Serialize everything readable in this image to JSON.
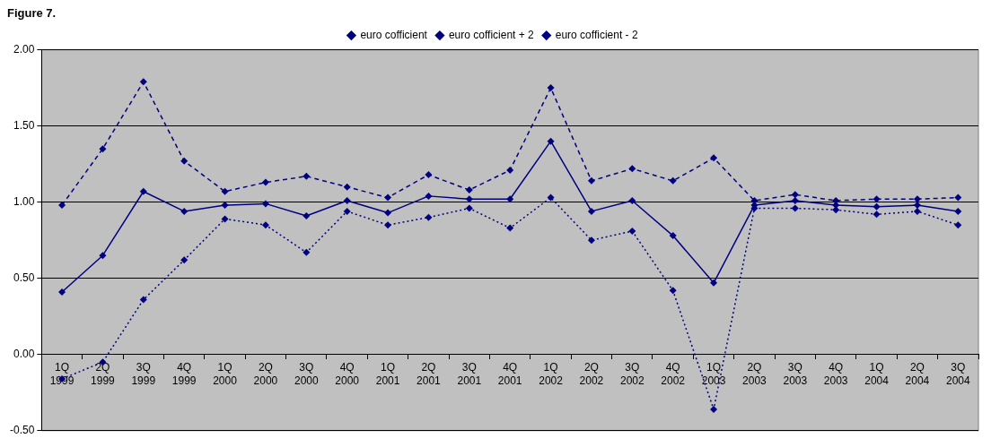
{
  "chart_data": {
    "type": "line",
    "title": "Figure 7.",
    "categories": [
      "1Q 1999",
      "2Q 1999",
      "3Q 1999",
      "4Q 1999",
      "1Q 2000",
      "2Q 2000",
      "3Q 2000",
      "4Q 2000",
      "1Q 2001",
      "2Q 2001",
      "3Q 2001",
      "4Q 2001",
      "1Q 2002",
      "2Q 2002",
      "3Q 2002",
      "4Q 2002",
      "1Q 2003",
      "2Q 2003",
      "3Q 2003",
      "4Q 2003",
      "1Q 2004",
      "2Q 2004",
      "3Q 2004"
    ],
    "series": [
      {
        "name": "euro cofficient",
        "color": "#000080",
        "line_style": "solid",
        "values": [
          0.41,
          0.65,
          1.07,
          0.94,
          0.98,
          0.99,
          0.91,
          1.01,
          0.93,
          1.04,
          1.02,
          1.02,
          1.4,
          0.94,
          1.01,
          0.78,
          0.47,
          0.98,
          1.01,
          0.98,
          0.97,
          0.98,
          0.94
        ]
      },
      {
        "name": "euro cofficient + 2",
        "color": "#000080",
        "line_style": "dashed",
        "values": [
          0.98,
          1.35,
          1.79,
          1.27,
          1.07,
          1.13,
          1.17,
          1.1,
          1.03,
          1.18,
          1.08,
          1.21,
          1.75,
          1.14,
          1.22,
          1.14,
          1.29,
          1.01,
          1.05,
          1.01,
          1.02,
          1.02,
          1.03
        ]
      },
      {
        "name": "euro cofficient - 2",
        "color": "#000080",
        "line_style": "dotted",
        "values": [
          -0.16,
          -0.05,
          0.36,
          0.62,
          0.89,
          0.85,
          0.67,
          0.94,
          0.85,
          0.9,
          0.96,
          0.83,
          1.03,
          0.75,
          0.81,
          0.42,
          -0.36,
          0.96,
          0.96,
          0.95,
          0.92,
          0.94,
          0.85
        ]
      }
    ],
    "ylim": [
      -0.5,
      2
    ],
    "yticks": [
      {
        "value": -0.5,
        "label": "-0.50"
      },
      {
        "value": 0,
        "label": "0.00"
      },
      {
        "value": 0.5,
        "label": "0.50"
      },
      {
        "value": 1,
        "label": "1.00"
      },
      {
        "value": 1.5,
        "label": "1.50"
      },
      {
        "value": 2,
        "label": "2.00"
      }
    ],
    "grid": "y",
    "legend": "top",
    "marker": "diamond"
  }
}
